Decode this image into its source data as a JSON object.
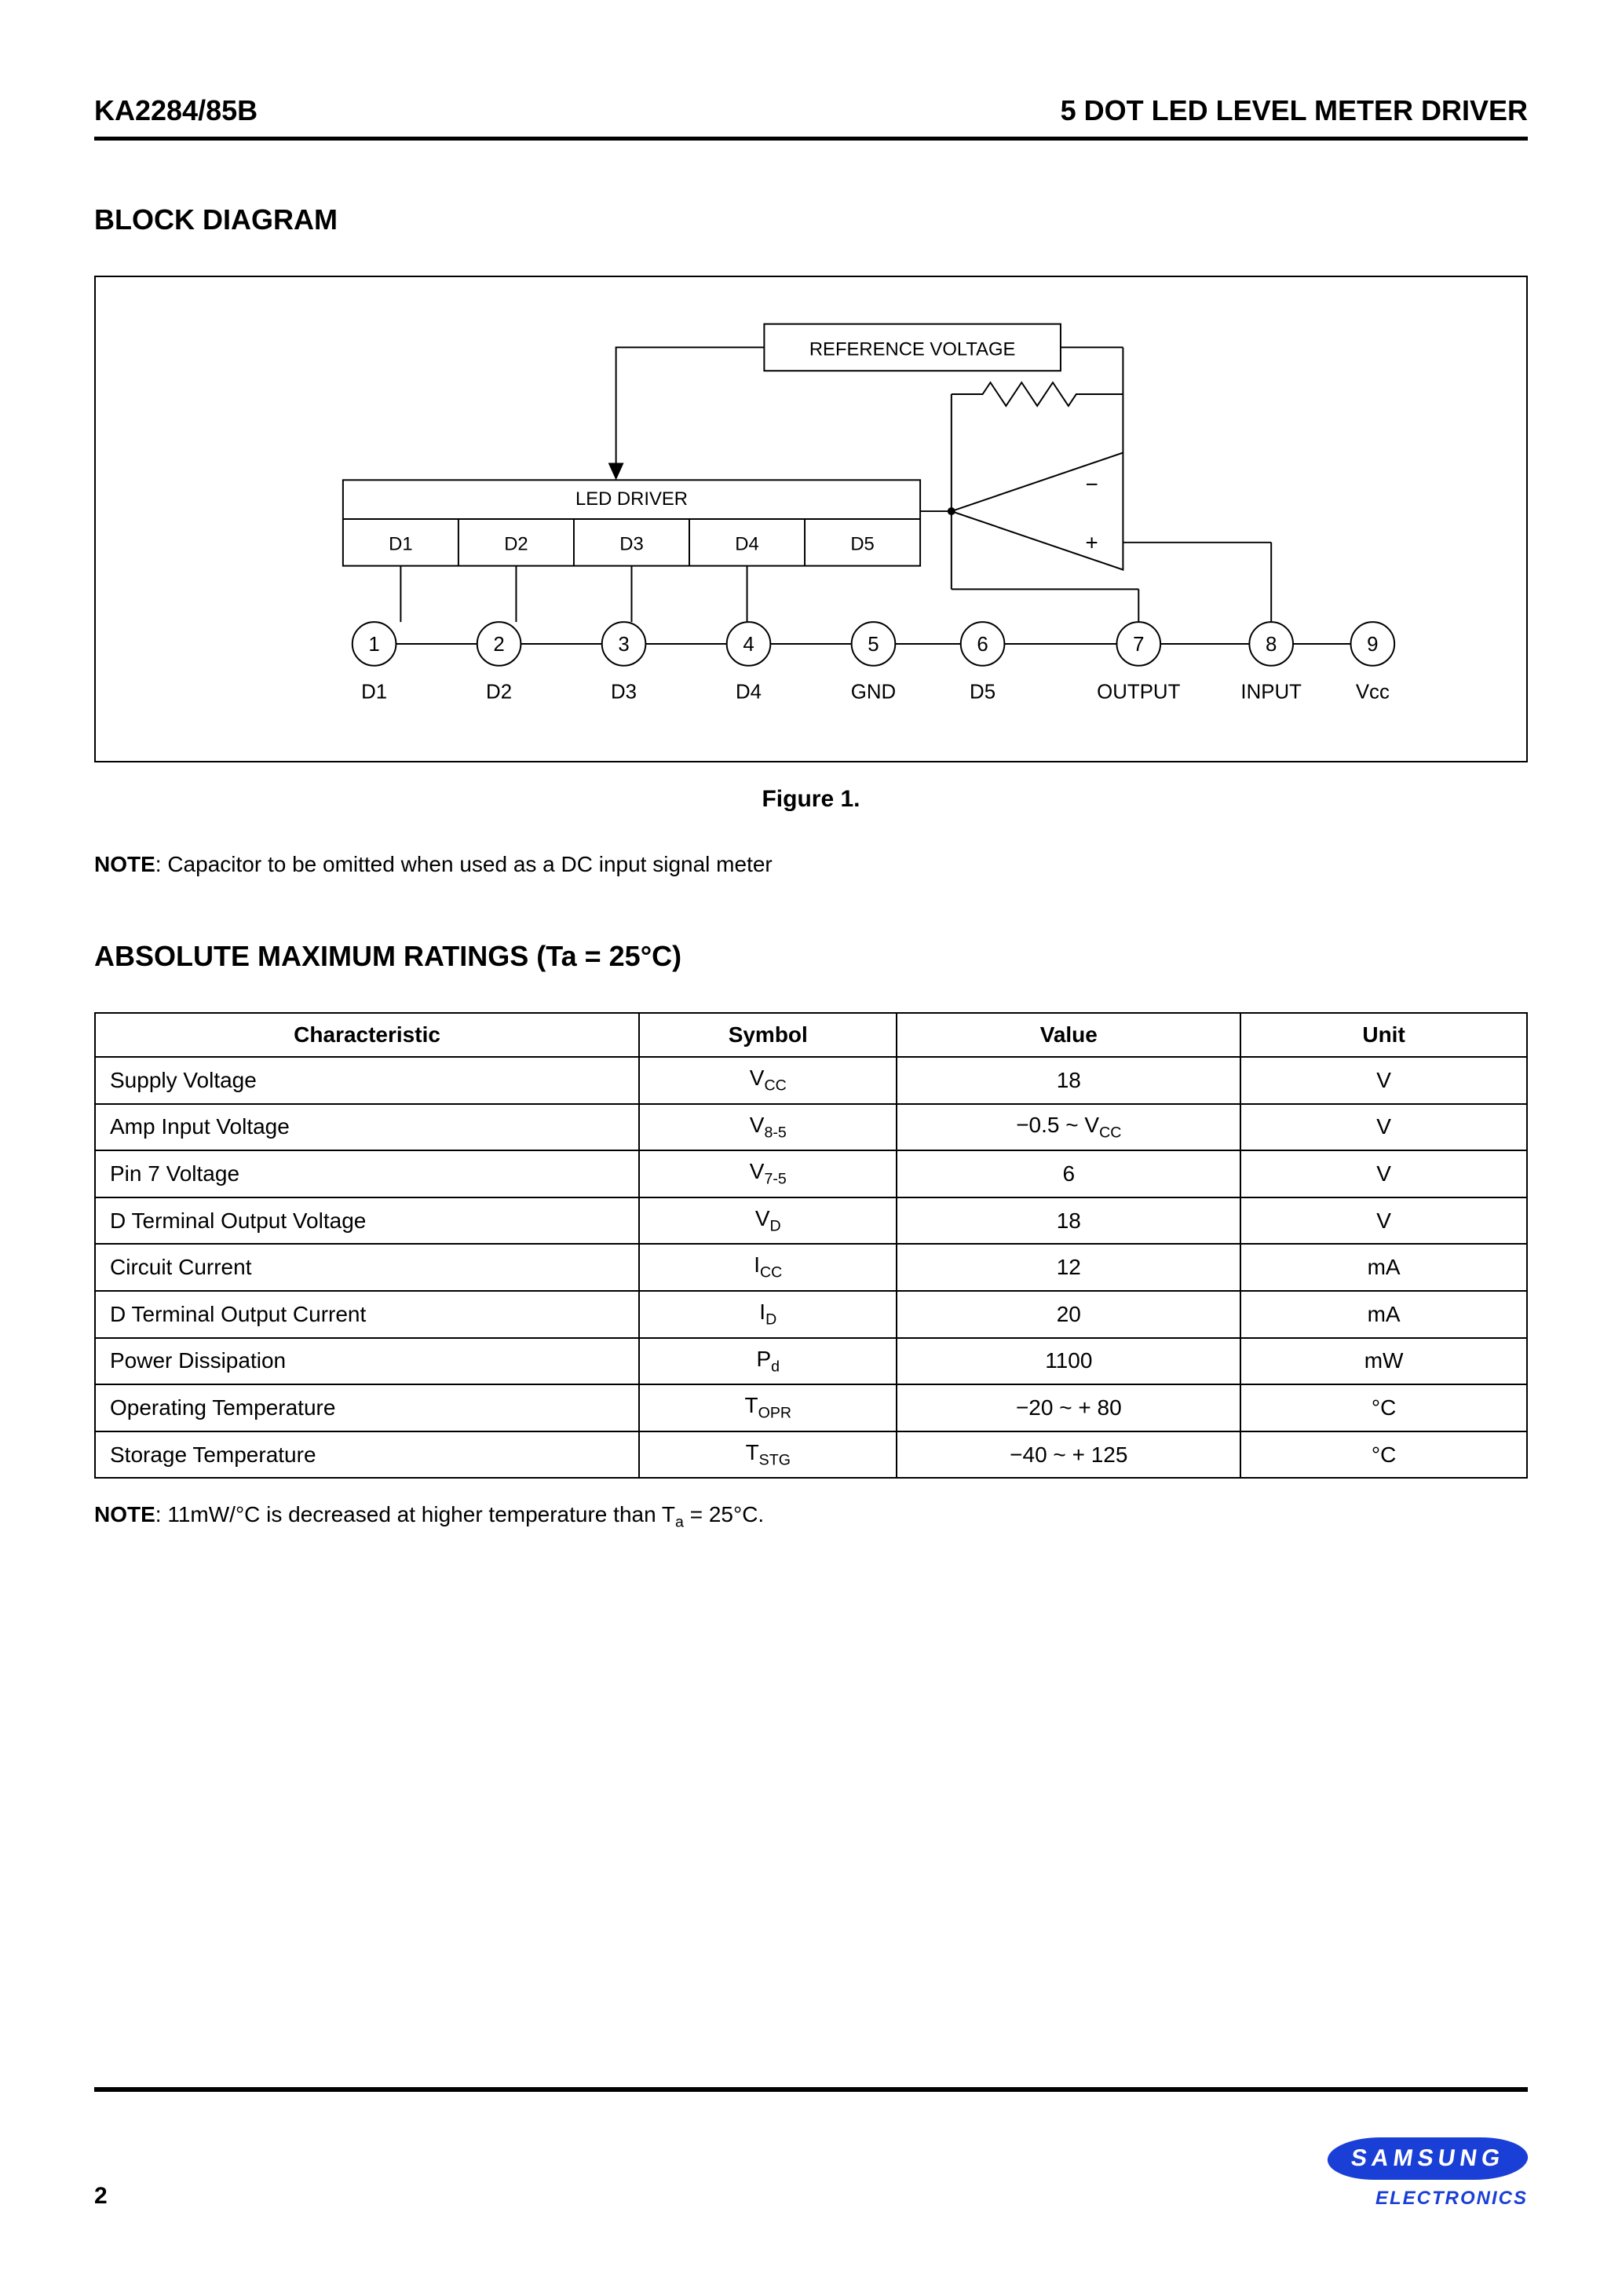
{
  "header": {
    "left": "KA2284/85B",
    "right": "5 DOT LED LEVEL METER DRIVER"
  },
  "block_diagram": {
    "title": "BLOCK DIAGRAM",
    "caption": "Figure  1.",
    "ref_voltage_label": "REFERENCE VOLTAGE",
    "led_driver_label": "LED DRIVER",
    "driver_cells": [
      "D1",
      "D2",
      "D3",
      "D4",
      "D5"
    ],
    "pins": [
      {
        "num": "1",
        "label": "D1"
      },
      {
        "num": "2",
        "label": "D2"
      },
      {
        "num": "3",
        "label": "D3"
      },
      {
        "num": "4",
        "label": "D4"
      },
      {
        "num": "5",
        "label": "GND"
      },
      {
        "num": "6",
        "label": "D5"
      },
      {
        "num": "7",
        "label": "OUTPUT"
      },
      {
        "num": "8",
        "label": "INPUT"
      },
      {
        "num": "9",
        "label": "Vcc"
      }
    ],
    "opamp": {
      "minus": "−",
      "plus": "+"
    },
    "stroke": "#000000",
    "stroke_width": 2,
    "font_size_small": 24,
    "font_size_pin": 26
  },
  "note1": {
    "prefix": "NOTE",
    "text": ": Capacitor to be omitted when used as a DC input signal meter"
  },
  "ratings": {
    "title": "ABSOLUTE MAXIMUM RATINGS (Ta = 25°C)",
    "columns": [
      "Characteristic",
      "Symbol",
      "Value",
      "Unit"
    ],
    "col_widths": [
      "38%",
      "18%",
      "24%",
      "20%"
    ],
    "rows": [
      {
        "char": "Supply Voltage",
        "sym": "V",
        "sub": "CC",
        "val": "18",
        "unit": "V"
      },
      {
        "char": "Amp Input Voltage",
        "sym": "V",
        "sub": "8-5",
        "val": "−0.5 ~ V",
        "valsub": "CC",
        "unit": "V"
      },
      {
        "char": "Pin 7 Voltage",
        "sym": "V",
        "sub": "7-5",
        "val": "6",
        "unit": "V"
      },
      {
        "char": "D Terminal Output Voltage",
        "sym": "V",
        "sub": "D",
        "val": "18",
        "unit": "V"
      },
      {
        "char": "Circuit Current",
        "sym": "I",
        "sub": "CC",
        "val": "12",
        "unit": "mA"
      },
      {
        "char": "D Terminal Output Current",
        "sym": "I",
        "sub": "D",
        "val": "20",
        "unit": "mA"
      },
      {
        "char": "Power Dissipation",
        "sym": "P",
        "sub": "d",
        "val": "1100",
        "unit": "mW"
      },
      {
        "char": "Operating Temperature",
        "sym": "T",
        "sub": "OPR",
        "val": "−20 ~ + 80",
        "unit": "°C"
      },
      {
        "char": "Storage Temperature",
        "sym": "T",
        "sub": "STG",
        "val": "−40 ~ + 125",
        "unit": "°C"
      }
    ]
  },
  "note2": {
    "prefix": "NOTE",
    "text_a": ": 11mW/°C is decreased at higher temperature than T",
    "sub": "a",
    "text_b": " = 25°C."
  },
  "footer": {
    "page": "2",
    "brand": "SAMSUNG",
    "sub_brand": "ELECTRONICS"
  }
}
